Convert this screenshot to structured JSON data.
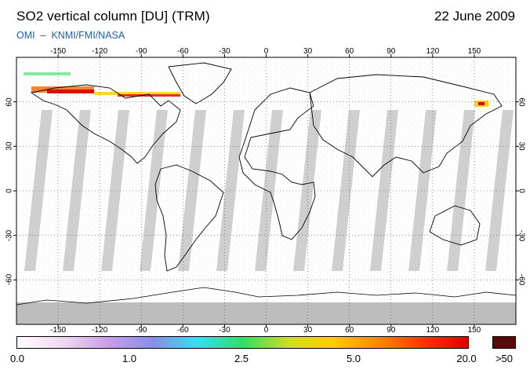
{
  "header": {
    "title": "SO2 vertical column [DU] (TRM)",
    "date": "22 June 2009",
    "credit": "OMI  –  KNMI/FMI/NASA"
  },
  "map": {
    "projection": "equirectangular",
    "lon_ticks_top": [
      "-150",
      "-120",
      "-90",
      "-60",
      "-30",
      "0",
      "30",
      "60",
      "90",
      "120",
      "150"
    ],
    "lon_ticks_bottom": [
      "-150",
      "-120",
      "-90",
      "-60",
      "-30",
      "0",
      "30",
      "60",
      "90",
      "120",
      "150"
    ],
    "lat_ticks_left": [
      "60",
      "30",
      "0",
      "-30",
      "-60"
    ],
    "lat_ticks_right": [
      "60",
      "30",
      "0",
      "-30",
      "-60"
    ],
    "gridlines": true,
    "gridline_style": "dotted",
    "background_color": "#ffffff",
    "swath_gap_color": "#cfcfcf",
    "land_outline_color": "#000000"
  },
  "colorbar": {
    "labels": [
      "0.0",
      "1.0",
      "2.5",
      "5.0",
      "20.0",
      ">50"
    ],
    "over_color": "#5a0808",
    "stops": [
      "#ffffff",
      "#f2d9f2",
      "#c9a0e8",
      "#8a8de8",
      "#33e0f0",
      "#33dd66",
      "#ccdd22",
      "#ffcc00",
      "#ff8800",
      "#ff3300",
      "#dd0000"
    ]
  }
}
